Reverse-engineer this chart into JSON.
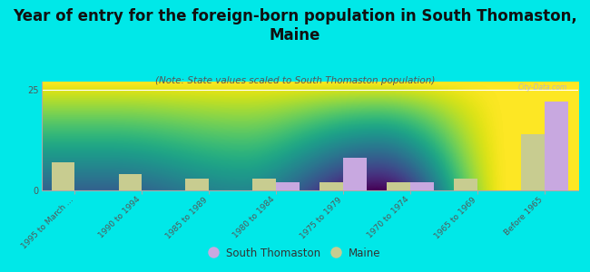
{
  "title": "Year of entry for the foreign-born population in South Thomaston,\nMaine",
  "subtitle": "(Note: State values scaled to South Thomaston population)",
  "categories": [
    "1995 to March ...",
    "1990 to 1994",
    "1985 to 1989",
    "1980 to 1984",
    "1975 to 1979",
    "1970 to 1974",
    "1965 to 1969",
    "Before 1965"
  ],
  "south_thomaston": [
    0,
    0,
    0,
    2,
    8,
    2,
    0,
    22
  ],
  "maine": [
    7,
    4,
    3,
    3,
    2,
    2,
    3,
    14
  ],
  "ylim": [
    0,
    27
  ],
  "yticks": [
    0,
    25
  ],
  "bar_color_st": "#c8a8e0",
  "bar_color_maine": "#c8cc90",
  "background_color": "#00e8e8",
  "plot_bg_color_top": "#ffffff",
  "plot_bg_color_bottom": "#e8eedd",
  "watermark": "City-Data.com",
  "legend_st": "South Thomaston",
  "legend_maine": "Maine",
  "title_fontsize": 12,
  "subtitle_fontsize": 7.5,
  "bar_width": 0.35
}
